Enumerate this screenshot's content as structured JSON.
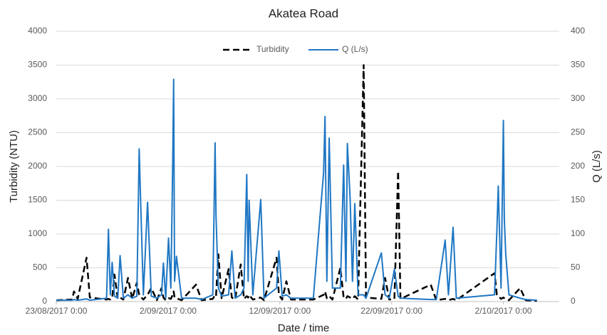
{
  "chart_data": {
    "type": "line",
    "title": "Akatea Road",
    "x_label": "Date / time",
    "y_label": "Turbidity (NTU)",
    "y2_label": "Q (L/s)",
    "legend": "top",
    "grid": true,
    "xlim": [
      "2017-08-23T00:00",
      "2017-10-07T00:00"
    ],
    "xticks": [
      {
        "value": "2017-08-23T00:00",
        "label": "23/08/2017 0:00"
      },
      {
        "value": "2017-09-02T00:00",
        "label": "2/09/2017 0:00"
      },
      {
        "value": "2017-09-12T00:00",
        "label": "12/09/2017 0:00"
      },
      {
        "value": "2017-09-22T00:00",
        "label": "22/09/2017 0:00"
      },
      {
        "value": "2017-10-02T00:00",
        "label": "2/10/2017 0:00"
      }
    ],
    "ylim": [
      0,
      4000
    ],
    "yticks": [
      0,
      500,
      1000,
      1500,
      2000,
      2500,
      3000,
      3500,
      4000
    ],
    "y2lim": [
      0,
      400
    ],
    "y2ticks": [
      0,
      50,
      100,
      150,
      200,
      250,
      300,
      350,
      400
    ],
    "x": [
      "2017-08-23T00:00",
      "2017-08-24T10:00",
      "2017-08-24T14:00",
      "2017-08-24T22:00",
      "2017-08-25T17:00",
      "2017-08-26T00:00",
      "2017-08-27T12:00",
      "2017-08-27T16:00",
      "2017-08-27T20:00",
      "2017-08-28T00:00",
      "2017-08-28T05:00",
      "2017-08-28T12:00",
      "2017-08-28T17:00",
      "2017-08-29T00:00",
      "2017-08-29T10:00",
      "2017-08-29T19:00",
      "2017-08-30T05:00",
      "2017-08-30T10:00",
      "2017-08-30T12:00",
      "2017-08-30T19:00",
      "2017-08-31T04:00",
      "2017-08-31T12:00",
      "2017-09-01T00:00",
      "2017-09-01T10:00",
      "2017-09-01T14:00",
      "2017-09-01T19:00",
      "2017-09-02T01:00",
      "2017-09-02T06:00",
      "2017-09-02T10:00",
      "2017-09-02T12:00",
      "2017-09-02T14:00",
      "2017-09-02T18:00",
      "2017-09-03T05:00",
      "2017-09-04T12:00",
      "2017-09-05T00:00",
      "2017-09-06T00:00",
      "2017-09-06T05:00",
      "2017-09-06T07:00",
      "2017-09-06T12:00",
      "2017-09-06T19:00",
      "2017-09-07T10:00",
      "2017-09-07T17:00",
      "2017-09-08T00:00",
      "2017-09-08T12:00",
      "2017-09-08T19:00",
      "2017-09-09T01:00",
      "2017-09-09T04:00",
      "2017-09-09T06:00",
      "2017-09-09T14:00",
      "2017-09-10T07:00",
      "2017-09-10T14:00",
      "2017-09-11T17:00",
      "2017-09-11T22:00",
      "2017-09-12T05:00",
      "2017-09-12T14:00",
      "2017-09-13T00:00",
      "2017-09-15T00:00",
      "2017-09-15T22:00",
      "2017-09-16T01:00",
      "2017-09-16T05:00",
      "2017-09-16T10:00",
      "2017-09-16T17:00",
      "2017-09-17T10:00",
      "2017-09-17T17:00",
      "2017-09-17T22:00",
      "2017-09-18T01:00",
      "2017-09-18T07:00",
      "2017-09-18T12:00",
      "2017-09-18T17:00",
      "2017-09-19T00:00",
      "2017-09-19T12:00",
      "2017-09-19T17:00",
      "2017-09-21T02:00",
      "2017-09-21T10:00",
      "2017-09-21T19:00",
      "2017-09-22T06:00",
      "2017-09-22T14:00",
      "2017-09-22T19:00",
      "2017-09-25T12:00",
      "2017-09-26T00:00",
      "2017-09-26T19:00",
      "2017-09-27T02:00",
      "2017-09-27T12:00",
      "2017-09-27T19:00",
      "2017-10-01T05:00",
      "2017-10-01T10:00",
      "2017-10-01T13:00",
      "2017-10-01T19:00",
      "2017-10-02T00:00",
      "2017-10-02T02:00",
      "2017-10-02T05:00",
      "2017-10-02T12:00",
      "2017-10-03T12:00",
      "2017-10-04T00:00",
      "2017-10-05T00:00"
    ],
    "series": [
      {
        "name": "Turbidity",
        "color": "#000000",
        "line_style": "dashed",
        "axis": "y",
        "values": [
          20,
          30,
          150,
          40,
          650,
          60,
          30,
          40,
          30,
          50,
          400,
          40,
          60,
          30,
          350,
          40,
          280,
          100,
          80,
          30,
          100,
          200,
          20,
          200,
          60,
          20,
          50,
          40,
          100,
          150,
          60,
          50,
          20,
          250,
          20,
          40,
          100,
          80,
          700,
          50,
          480,
          60,
          30,
          550,
          40,
          80,
          60,
          100,
          30,
          60,
          20,
          650,
          100,
          30,
          300,
          30,
          30,
          100,
          150,
          50,
          80,
          30,
          500,
          60,
          40,
          80,
          60,
          40,
          80,
          30,
          3500,
          60,
          40,
          350,
          30,
          40,
          1930,
          40,
          250,
          20,
          40,
          20,
          40,
          20,
          420,
          100,
          80,
          40,
          60,
          50,
          40,
          20,
          200,
          20,
          10
        ]
      },
      {
        "name": "Q (L/s)",
        "color": "#1f77c4",
        "line_style": "solid",
        "axis": "y2",
        "values": [
          2,
          2,
          3,
          2,
          4,
          2,
          5,
          107,
          10,
          58,
          8,
          5,
          68,
          5,
          10,
          5,
          8,
          226,
          175,
          10,
          147,
          8,
          5,
          10,
          57,
          5,
          94,
          20,
          205,
          329,
          30,
          67,
          5,
          5,
          3,
          10,
          235,
          126,
          20,
          8,
          10,
          75,
          5,
          10,
          20,
          188,
          30,
          150,
          10,
          151,
          5,
          20,
          75,
          8,
          10,
          5,
          5,
          191,
          274,
          30,
          242,
          20,
          20,
          202,
          30,
          234,
          151,
          30,
          145,
          10,
          10,
          5,
          72,
          10,
          5,
          48,
          8,
          5,
          3,
          3,
          91,
          10,
          110,
          5,
          10,
          104,
          171,
          20,
          268,
          123,
          71,
          10,
          5,
          3,
          2
        ]
      }
    ]
  }
}
